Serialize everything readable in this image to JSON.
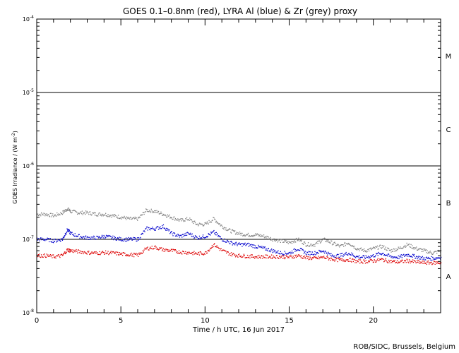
{
  "chart_data": {
    "type": "scatter",
    "title": "GOES 0.1–0.8nm (red), LYRA Al (blue) & Zr (grey) proxy",
    "xlabel": "Time / h UTC, 16 Jun 2017",
    "ylabel": "GOES Irradiance / (W m",
    "ylabel_sup": "-2",
    "ylabel_close": ")",
    "credit": "ROB/SIDC, Brussels, Belgium",
    "xlim": [
      0,
      24
    ],
    "x_ticks": [
      0,
      5,
      10,
      15,
      20
    ],
    "ylim": [
      1e-08,
      0.0001
    ],
    "yscale": "log",
    "y_ticks": [
      {
        "value": 1e-08,
        "mant": "10",
        "exp": "-8"
      },
      {
        "value": 1e-07,
        "mant": "10",
        "exp": "-7"
      },
      {
        "value": 1e-06,
        "mant": "10",
        "exp": "-6"
      },
      {
        "value": 1e-05,
        "mant": "10",
        "exp": "-5"
      },
      {
        "value": 0.0001,
        "mant": "10",
        "exp": "-4"
      }
    ],
    "threshold_lines": [
      1e-07,
      1e-06,
      1e-05
    ],
    "flare_classes": [
      {
        "label": "A",
        "value": 3.16e-08
      },
      {
        "label": "B",
        "value": 3.16e-07
      },
      {
        "label": "C",
        "value": 3.16e-06
      },
      {
        "label": "M",
        "value": 3.16e-05
      }
    ],
    "series": [
      {
        "color": "#808080",
        "x": [
          0.0,
          0.5,
          1.0,
          1.5,
          1.8,
          2.0,
          2.5,
          3.0,
          3.5,
          4.0,
          4.5,
          5.0,
          5.5,
          6.0,
          6.5,
          7.0,
          7.5,
          8.0,
          8.5,
          9.0,
          9.5,
          10.0,
          10.5,
          11.0,
          11.5,
          12.0,
          12.5,
          13.0,
          13.5,
          14.0,
          14.5,
          15.0,
          15.5,
          16.0,
          16.5,
          17.0,
          17.5,
          18.0,
          18.5,
          19.0,
          19.5,
          20.0,
          20.5,
          21.0,
          21.5,
          22.0,
          22.5,
          23.0,
          23.5,
          24.0
        ],
        "y": [
          2.2e-07,
          2.2e-07,
          2.1e-07,
          2.3e-07,
          2.6e-07,
          2.4e-07,
          2.3e-07,
          2.3e-07,
          2.2e-07,
          2.2e-07,
          2.1e-07,
          2e-07,
          1.9e-07,
          1.9e-07,
          2.5e-07,
          2.4e-07,
          2.2e-07,
          2e-07,
          1.8e-07,
          1.9e-07,
          1.6e-07,
          1.6e-07,
          1.9e-07,
          1.5e-07,
          1.3e-07,
          1.2e-07,
          1.15e-07,
          1.15e-07,
          1.1e-07,
          1e-07,
          9.5e-08,
          9e-08,
          1e-07,
          8.5e-08,
          8.5e-08,
          1e-07,
          9e-08,
          8e-08,
          9e-08,
          7.5e-08,
          7e-08,
          7.5e-08,
          8e-08,
          7e-08,
          7.5e-08,
          8.5e-08,
          7.5e-08,
          7e-08,
          6.5e-08,
          7e-08
        ]
      },
      {
        "color": "#0000cc",
        "x": [
          0.0,
          0.5,
          1.0,
          1.5,
          1.8,
          2.0,
          2.5,
          3.0,
          3.5,
          4.0,
          4.5,
          5.0,
          5.5,
          6.0,
          6.5,
          7.0,
          7.5,
          8.0,
          8.5,
          9.0,
          9.5,
          10.0,
          10.5,
          11.0,
          11.5,
          12.0,
          12.5,
          13.0,
          13.5,
          14.0,
          14.5,
          15.0,
          15.5,
          16.0,
          16.5,
          17.0,
          17.5,
          18.0,
          18.5,
          19.0,
          19.5,
          20.0,
          20.5,
          21.0,
          21.5,
          22.0,
          22.5,
          23.0,
          23.5,
          24.0
        ],
        "y": [
          1e-07,
          1e-07,
          9.5e-08,
          1e-07,
          1.35e-07,
          1.2e-07,
          1.1e-07,
          1.05e-07,
          1.05e-07,
          1.1e-07,
          1.05e-07,
          1e-07,
          1e-07,
          1e-07,
          1.4e-07,
          1.4e-07,
          1.5e-07,
          1.2e-07,
          1.1e-07,
          1.2e-07,
          1.05e-07,
          1.1e-07,
          1.25e-07,
          1e-07,
          9e-08,
          8.5e-08,
          8.5e-08,
          8e-08,
          7.5e-08,
          7e-08,
          6.5e-08,
          6.5e-08,
          7.5e-08,
          6.5e-08,
          6.5e-08,
          7e-08,
          6e-08,
          6e-08,
          6.5e-08,
          5.8e-08,
          5.7e-08,
          6e-08,
          6.5e-08,
          5.8e-08,
          5.7e-08,
          6.2e-08,
          5.8e-08,
          5.5e-08,
          5.5e-08,
          5.7e-08
        ]
      },
      {
        "color": "#dd0000",
        "x": [
          0.0,
          0.5,
          1.0,
          1.5,
          1.8,
          2.0,
          2.5,
          3.0,
          3.5,
          4.0,
          4.5,
          5.0,
          5.5,
          6.0,
          6.5,
          7.0,
          7.5,
          8.0,
          8.5,
          9.0,
          9.5,
          10.0,
          10.5,
          11.0,
          11.5,
          12.0,
          12.5,
          13.0,
          13.5,
          14.0,
          14.5,
          15.0,
          15.5,
          16.0,
          16.5,
          17.0,
          17.5,
          18.0,
          18.5,
          19.0,
          19.5,
          20.0,
          20.5,
          21.0,
          21.5,
          22.0,
          22.5,
          23.0,
          23.5,
          24.0
        ],
        "y": [
          6e-08,
          6e-08,
          5.8e-08,
          6e-08,
          7.2e-08,
          7e-08,
          6.8e-08,
          6.6e-08,
          6.5e-08,
          6.6e-08,
          6.5e-08,
          6.3e-08,
          6.2e-08,
          6.1e-08,
          7.5e-08,
          7.8e-08,
          7.2e-08,
          7e-08,
          6.7e-08,
          6.6e-08,
          6.4e-08,
          6.5e-08,
          8.5e-08,
          7e-08,
          6.3e-08,
          6e-08,
          5.9e-08,
          5.8e-08,
          5.8e-08,
          5.8e-08,
          5.8e-08,
          5.7e-08,
          6e-08,
          5.6e-08,
          5.5e-08,
          5.7e-08,
          5.4e-08,
          5.2e-08,
          5.3e-08,
          5e-08,
          5e-08,
          5.1e-08,
          5.3e-08,
          5e-08,
          4.9e-08,
          5.1e-08,
          4.9e-08,
          4.8e-08,
          4.8e-08,
          4.8e-08
        ]
      }
    ]
  }
}
